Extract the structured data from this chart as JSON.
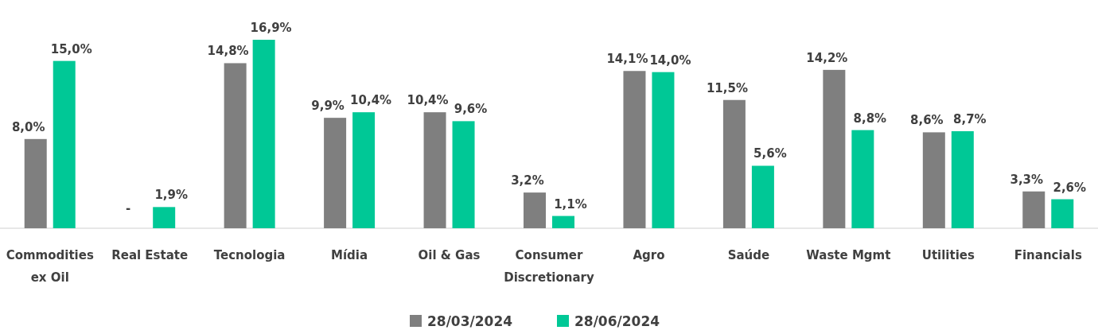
{
  "chart_data": {
    "type": "bar",
    "categories": [
      "Commodities ex Oil",
      "Real Estate",
      "Tecnologia",
      "Mídia",
      "Oil & Gas",
      "Consumer Discretionary",
      "Agro",
      "Saúde",
      "Waste Mgmt",
      "Utilities",
      "Financials"
    ],
    "series": [
      {
        "name": "28/03/2024",
        "color": "#7f7f7f",
        "values": [
          8.0,
          null,
          14.8,
          9.9,
          10.4,
          3.2,
          14.1,
          11.5,
          14.2,
          8.6,
          3.3
        ],
        "value_labels": [
          "8,0%",
          "-",
          "14,8%",
          "9,9%",
          "10,4%",
          "3,2%",
          "14,1%",
          "11,5%",
          "14,2%",
          "8,6%",
          "3,3%"
        ]
      },
      {
        "name": "28/06/2024",
        "color": "#00c896",
        "values": [
          15.0,
          1.9,
          16.9,
          10.4,
          9.6,
          1.1,
          14.0,
          5.6,
          8.8,
          8.7,
          2.6
        ],
        "value_labels": [
          "15,0%",
          "1,9%",
          "16,9%",
          "10,4%",
          "9,6%",
          "1,1%",
          "14,0%",
          "5,6%",
          "8,8%",
          "8,7%",
          "2,6%"
        ]
      }
    ],
    "legend": "bottom"
  }
}
